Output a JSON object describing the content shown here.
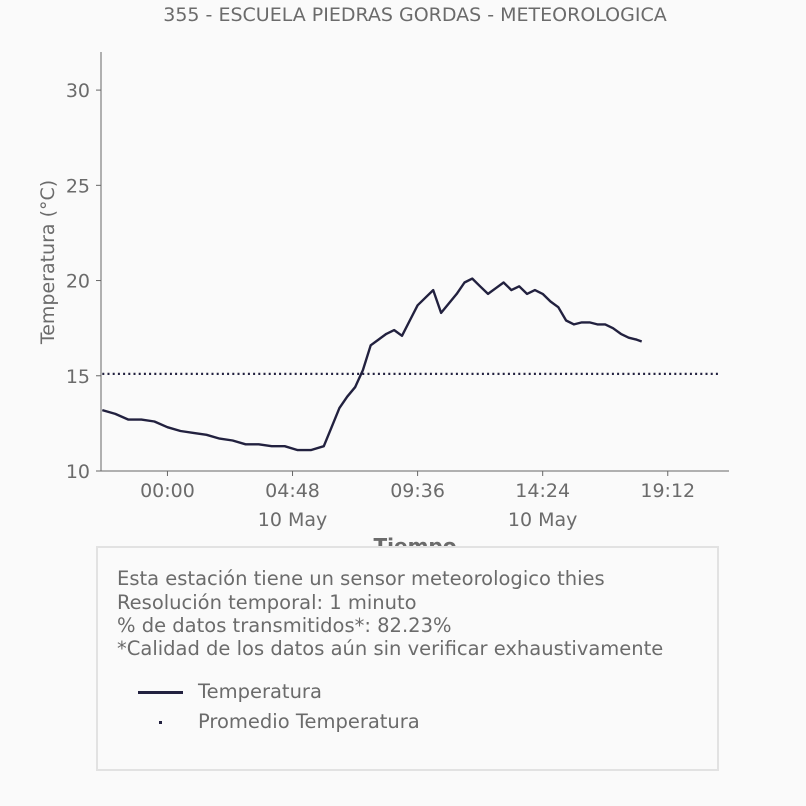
{
  "chart_data": {
    "type": "line",
    "title": "355 - ESCUELA PIEDRAS GORDAS - METEOROLOGICA",
    "xlabel": "Tiempo",
    "ylabel": "Temperatura (°C)",
    "ylim": [
      10,
      32
    ],
    "yticks": [
      10,
      15,
      20,
      25,
      30
    ],
    "xticks": [
      {
        "hour": 0,
        "label": "00:00",
        "sublabel": ""
      },
      {
        "hour": 4.8,
        "label": "04:48",
        "sublabel": "10 May"
      },
      {
        "hour": 9.6,
        "label": "09:36",
        "sublabel": ""
      },
      {
        "hour": 14.4,
        "label": "14:24",
        "sublabel": "10 May"
      },
      {
        "hour": 19.2,
        "label": "19:12",
        "sublabel": ""
      }
    ],
    "x_unit": "hours since 00:00 10 May",
    "xlim": [
      -2.55,
      21.55
    ],
    "grid": false,
    "series": [
      {
        "name": "Temperatura",
        "color": "#22213f",
        "style": "solid",
        "x": [
          -2.5,
          -2.0,
          -1.5,
          -1.0,
          -0.5,
          0.0,
          0.5,
          1.0,
          1.5,
          2.0,
          2.5,
          3.0,
          3.5,
          4.0,
          4.5,
          5.0,
          5.5,
          6.0,
          6.3,
          6.6,
          6.9,
          7.2,
          7.5,
          7.8,
          8.1,
          8.4,
          8.7,
          9.0,
          9.3,
          9.6,
          9.9,
          10.2,
          10.5,
          10.8,
          11.1,
          11.4,
          11.7,
          12.0,
          12.3,
          12.6,
          12.9,
          13.2,
          13.5,
          13.8,
          14.1,
          14.4,
          14.7,
          15.0,
          15.3,
          15.6,
          15.9,
          16.2,
          16.5,
          16.8,
          17.1,
          17.4,
          17.7,
          18.0,
          18.2
        ],
        "y": [
          13.2,
          13.0,
          12.7,
          12.7,
          12.6,
          12.3,
          12.1,
          12.0,
          11.9,
          11.7,
          11.6,
          11.4,
          11.4,
          11.3,
          11.3,
          11.1,
          11.1,
          11.3,
          12.3,
          13.3,
          13.9,
          14.4,
          15.3,
          16.6,
          16.9,
          17.2,
          17.4,
          17.1,
          17.9,
          18.7,
          19.1,
          19.5,
          18.3,
          18.8,
          19.3,
          19.9,
          20.1,
          19.7,
          19.3,
          19.6,
          19.9,
          19.5,
          19.7,
          19.3,
          19.5,
          19.3,
          18.9,
          18.6,
          17.9,
          17.7,
          17.8,
          17.8,
          17.7,
          17.7,
          17.5,
          17.2,
          17.0,
          16.9,
          16.8
        ]
      },
      {
        "name": "Promedio Temperatura",
        "color": "#22213f",
        "style": "dotted",
        "x": [
          -2.5,
          21.2
        ],
        "y": [
          15.1,
          15.1
        ]
      }
    ],
    "legend": "bottom"
  },
  "info": {
    "line1": "Esta estación tiene un sensor meteorologico thies",
    "line2": "Resolución temporal: 1 minuto",
    "line3": "% de datos transmitidos*: 82.23%",
    "line4": "*Calidad de los datos aún sin verificar exhaustivamente"
  },
  "legend": {
    "item1": "Temperatura",
    "item2": "Promedio Temperatura"
  }
}
